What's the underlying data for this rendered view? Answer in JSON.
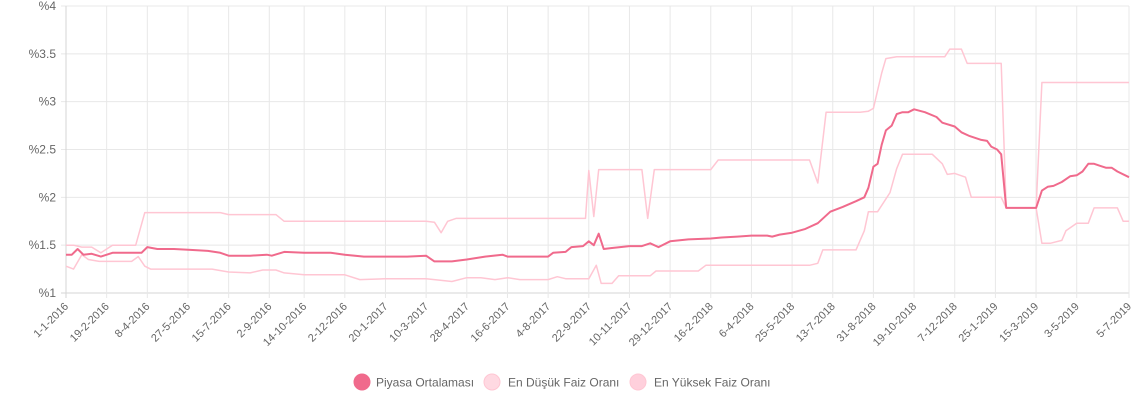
{
  "chart_data": {
    "type": "line",
    "title": "",
    "xlabel": "",
    "ylabel": "",
    "ylim": [
      1,
      4
    ],
    "y_ticks": [
      "%1",
      "%1.5",
      "%2",
      "%2.5",
      "%3",
      "%3.5",
      "%4"
    ],
    "y_tick_values": [
      1,
      1.5,
      2,
      2.5,
      3,
      3.5,
      4
    ],
    "x_range": [
      "2016-01-01",
      "2019-07-05"
    ],
    "x_tick_labels": [
      "1-1-2016",
      "19-2-2016",
      "8-4-2016",
      "27-5-2016",
      "15-7-2016",
      "2-9-2016",
      "14-10-2016",
      "2-12-2016",
      "20-1-2017",
      "10-3-2017",
      "28-4-2017",
      "16-6-2017",
      "4-8-2017",
      "22-9-2017",
      "10-11-2017",
      "29-12-2017",
      "16-2-2018",
      "6-4-2018",
      "25-5-2018",
      "13-7-2018",
      "31-8-2018",
      "19-10-2018",
      "7-12-2018",
      "25-1-2019",
      "15-3-2019",
      "3-5-2019",
      "5-7-2019"
    ],
    "x_tick_dates": [
      "2016-01-01",
      "2016-02-19",
      "2016-04-08",
      "2016-05-27",
      "2016-07-15",
      "2016-09-02",
      "2016-10-14",
      "2016-12-02",
      "2017-01-20",
      "2017-03-10",
      "2017-04-28",
      "2017-06-16",
      "2017-08-04",
      "2017-09-22",
      "2017-11-10",
      "2017-12-29",
      "2018-02-16",
      "2018-04-06",
      "2018-05-25",
      "2018-07-13",
      "2018-08-31",
      "2018-10-19",
      "2018-12-07",
      "2019-01-25",
      "2019-03-15",
      "2019-05-03",
      "2019-07-05"
    ],
    "grid": true,
    "legend_position": "bottom",
    "series": [
      {
        "name": "Piyasa Ortalaması",
        "color": "#f06a8c",
        "fill": "#f06a8c",
        "width": 2,
        "points": [
          [
            "2016-01-01",
            1.4
          ],
          [
            "2016-01-08",
            1.4
          ],
          [
            "2016-01-15",
            1.46
          ],
          [
            "2016-01-22",
            1.4
          ],
          [
            "2016-02-01",
            1.41
          ],
          [
            "2016-02-12",
            1.38
          ],
          [
            "2016-02-26",
            1.42
          ],
          [
            "2016-03-15",
            1.42
          ],
          [
            "2016-04-01",
            1.42
          ],
          [
            "2016-04-08",
            1.48
          ],
          [
            "2016-04-20",
            1.46
          ],
          [
            "2016-05-10",
            1.46
          ],
          [
            "2016-05-30",
            1.45
          ],
          [
            "2016-06-20",
            1.44
          ],
          [
            "2016-07-05",
            1.42
          ],
          [
            "2016-07-15",
            1.39
          ],
          [
            "2016-08-10",
            1.39
          ],
          [
            "2016-08-30",
            1.4
          ],
          [
            "2016-09-05",
            1.39
          ],
          [
            "2016-09-20",
            1.43
          ],
          [
            "2016-10-14",
            1.42
          ],
          [
            "2016-11-01",
            1.42
          ],
          [
            "2016-11-15",
            1.42
          ],
          [
            "2016-12-02",
            1.4
          ],
          [
            "2016-12-25",
            1.38
          ],
          [
            "2017-01-20",
            1.38
          ],
          [
            "2017-02-15",
            1.38
          ],
          [
            "2017-03-10",
            1.39
          ],
          [
            "2017-03-20",
            1.33
          ],
          [
            "2017-04-10",
            1.33
          ],
          [
            "2017-04-28",
            1.35
          ],
          [
            "2017-05-20",
            1.38
          ],
          [
            "2017-06-10",
            1.4
          ],
          [
            "2017-06-16",
            1.38
          ],
          [
            "2017-07-10",
            1.38
          ],
          [
            "2017-08-04",
            1.38
          ],
          [
            "2017-08-10",
            1.42
          ],
          [
            "2017-08-25",
            1.43
          ],
          [
            "2017-09-01",
            1.48
          ],
          [
            "2017-09-15",
            1.49
          ],
          [
            "2017-09-22",
            1.54
          ],
          [
            "2017-09-28",
            1.5
          ],
          [
            "2017-10-04",
            1.62
          ],
          [
            "2017-10-10",
            1.46
          ],
          [
            "2017-10-20",
            1.47
          ],
          [
            "2017-11-10",
            1.49
          ],
          [
            "2017-11-25",
            1.49
          ],
          [
            "2017-12-05",
            1.52
          ],
          [
            "2017-12-15",
            1.48
          ],
          [
            "2017-12-29",
            1.54
          ],
          [
            "2018-01-20",
            1.56
          ],
          [
            "2018-02-16",
            1.57
          ],
          [
            "2018-03-01",
            1.58
          ],
          [
            "2018-03-20",
            1.59
          ],
          [
            "2018-04-06",
            1.6
          ],
          [
            "2018-04-25",
            1.6
          ],
          [
            "2018-05-01",
            1.59
          ],
          [
            "2018-05-10",
            1.61
          ],
          [
            "2018-05-25",
            1.63
          ],
          [
            "2018-06-10",
            1.67
          ],
          [
            "2018-06-25",
            1.73
          ],
          [
            "2018-07-10",
            1.85
          ],
          [
            "2018-07-25",
            1.9
          ],
          [
            "2018-08-10",
            1.96
          ],
          [
            "2018-08-20",
            2.0
          ],
          [
            "2018-08-25",
            2.1
          ],
          [
            "2018-08-31",
            2.32
          ],
          [
            "2018-09-05",
            2.35
          ],
          [
            "2018-09-10",
            2.55
          ],
          [
            "2018-09-15",
            2.7
          ],
          [
            "2018-09-22",
            2.75
          ],
          [
            "2018-09-28",
            2.87
          ],
          [
            "2018-10-05",
            2.89
          ],
          [
            "2018-10-12",
            2.89
          ],
          [
            "2018-10-19",
            2.92
          ],
          [
            "2018-11-01",
            2.89
          ],
          [
            "2018-11-15",
            2.84
          ],
          [
            "2018-11-22",
            2.78
          ],
          [
            "2018-12-07",
            2.74
          ],
          [
            "2018-12-15",
            2.68
          ],
          [
            "2018-12-25",
            2.64
          ],
          [
            "2019-01-08",
            2.6
          ],
          [
            "2019-01-15",
            2.59
          ],
          [
            "2019-01-20",
            2.53
          ],
          [
            "2019-01-27",
            2.5
          ],
          [
            "2019-02-01",
            2.45
          ],
          [
            "2019-02-07",
            1.89
          ],
          [
            "2019-02-20",
            1.89
          ],
          [
            "2019-03-15",
            1.89
          ],
          [
            "2019-03-22",
            2.07
          ],
          [
            "2019-03-29",
            2.11
          ],
          [
            "2019-04-05",
            2.12
          ],
          [
            "2019-04-15",
            2.16
          ],
          [
            "2019-04-25",
            2.22
          ],
          [
            "2019-05-03",
            2.23
          ],
          [
            "2019-05-10",
            2.27
          ],
          [
            "2019-05-17",
            2.35
          ],
          [
            "2019-05-24",
            2.35
          ],
          [
            "2019-05-31",
            2.33
          ],
          [
            "2019-06-07",
            2.31
          ],
          [
            "2019-06-14",
            2.31
          ],
          [
            "2019-06-21",
            2.27
          ],
          [
            "2019-07-05",
            2.21
          ]
        ]
      },
      {
        "name": "En Düşük Faiz Oranı",
        "color": "#ffc6d3",
        "fill": "#ffd9e2",
        "width": 1.5,
        "points": [
          [
            "2016-01-01",
            1.28
          ],
          [
            "2016-01-10",
            1.25
          ],
          [
            "2016-01-20",
            1.4
          ],
          [
            "2016-01-28",
            1.35
          ],
          [
            "2016-02-10",
            1.33
          ],
          [
            "2016-03-01",
            1.33
          ],
          [
            "2016-03-20",
            1.33
          ],
          [
            "2016-03-28",
            1.38
          ],
          [
            "2016-04-05",
            1.28
          ],
          [
            "2016-04-12",
            1.25
          ],
          [
            "2016-05-15",
            1.25
          ],
          [
            "2016-06-25",
            1.25
          ],
          [
            "2016-07-15",
            1.22
          ],
          [
            "2016-08-10",
            1.21
          ],
          [
            "2016-08-25",
            1.24
          ],
          [
            "2016-09-10",
            1.24
          ],
          [
            "2016-09-20",
            1.21
          ],
          [
            "2016-10-14",
            1.19
          ],
          [
            "2016-12-02",
            1.19
          ],
          [
            "2016-12-20",
            1.14
          ],
          [
            "2017-01-20",
            1.15
          ],
          [
            "2017-03-10",
            1.15
          ],
          [
            "2017-03-20",
            1.14
          ],
          [
            "2017-04-10",
            1.12
          ],
          [
            "2017-04-28",
            1.16
          ],
          [
            "2017-05-15",
            1.16
          ],
          [
            "2017-06-01",
            1.14
          ],
          [
            "2017-06-16",
            1.16
          ],
          [
            "2017-07-01",
            1.14
          ],
          [
            "2017-08-04",
            1.14
          ],
          [
            "2017-08-15",
            1.17
          ],
          [
            "2017-08-25",
            1.15
          ],
          [
            "2017-09-22",
            1.15
          ],
          [
            "2017-10-01",
            1.29
          ],
          [
            "2017-10-07",
            1.1
          ],
          [
            "2017-10-20",
            1.1
          ],
          [
            "2017-10-28",
            1.18
          ],
          [
            "2017-11-15",
            1.18
          ],
          [
            "2017-12-05",
            1.18
          ],
          [
            "2017-12-12",
            1.23
          ],
          [
            "2018-01-10",
            1.23
          ],
          [
            "2018-02-01",
            1.23
          ],
          [
            "2018-02-10",
            1.29
          ],
          [
            "2018-03-10",
            1.29
          ],
          [
            "2018-05-01",
            1.29
          ],
          [
            "2018-06-15",
            1.29
          ],
          [
            "2018-06-25",
            1.31
          ],
          [
            "2018-07-01",
            1.45
          ],
          [
            "2018-07-20",
            1.45
          ],
          [
            "2018-08-05",
            1.45
          ],
          [
            "2018-08-10",
            1.45
          ],
          [
            "2018-08-20",
            1.65
          ],
          [
            "2018-08-25",
            1.85
          ],
          [
            "2018-09-05",
            1.85
          ],
          [
            "2018-09-20",
            2.05
          ],
          [
            "2018-09-28",
            2.3
          ],
          [
            "2018-10-05",
            2.45
          ],
          [
            "2018-10-20",
            2.45
          ],
          [
            "2018-11-10",
            2.45
          ],
          [
            "2018-11-22",
            2.35
          ],
          [
            "2018-11-28",
            2.24
          ],
          [
            "2018-12-07",
            2.25
          ],
          [
            "2018-12-20",
            2.21
          ],
          [
            "2018-12-27",
            2.0
          ],
          [
            "2019-01-20",
            2.0
          ],
          [
            "2019-02-01",
            2.0
          ],
          [
            "2019-02-07",
            1.89
          ],
          [
            "2019-03-15",
            1.89
          ],
          [
            "2019-03-22",
            1.52
          ],
          [
            "2019-04-01",
            1.52
          ],
          [
            "2019-04-15",
            1.55
          ],
          [
            "2019-04-20",
            1.65
          ],
          [
            "2019-05-03",
            1.73
          ],
          [
            "2019-05-17",
            1.73
          ],
          [
            "2019-05-24",
            1.89
          ],
          [
            "2019-06-21",
            1.89
          ],
          [
            "2019-06-28",
            1.75
          ],
          [
            "2019-07-05",
            1.75
          ]
        ]
      },
      {
        "name": "En Yüksek Faiz Oranı",
        "color": "#ffc6d3",
        "fill": "#ffd0dc",
        "width": 1.5,
        "points": [
          [
            "2016-01-01",
            1.5
          ],
          [
            "2016-01-10",
            1.5
          ],
          [
            "2016-01-20",
            1.48
          ],
          [
            "2016-02-01",
            1.48
          ],
          [
            "2016-02-12",
            1.42
          ],
          [
            "2016-02-26",
            1.5
          ],
          [
            "2016-03-25",
            1.5
          ],
          [
            "2016-04-05",
            1.84
          ],
          [
            "2016-05-01",
            1.84
          ],
          [
            "2016-06-01",
            1.84
          ],
          [
            "2016-07-05",
            1.84
          ],
          [
            "2016-07-15",
            1.82
          ],
          [
            "2016-08-10",
            1.82
          ],
          [
            "2016-09-10",
            1.82
          ],
          [
            "2016-09-20",
            1.75
          ],
          [
            "2016-10-14",
            1.75
          ],
          [
            "2016-11-15",
            1.75
          ],
          [
            "2016-12-02",
            1.75
          ],
          [
            "2017-01-20",
            1.75
          ],
          [
            "2017-03-10",
            1.75
          ],
          [
            "2017-03-20",
            1.74
          ],
          [
            "2017-03-28",
            1.63
          ],
          [
            "2017-04-05",
            1.75
          ],
          [
            "2017-04-15",
            1.78
          ],
          [
            "2017-05-20",
            1.78
          ],
          [
            "2017-06-16",
            1.78
          ],
          [
            "2017-08-04",
            1.78
          ],
          [
            "2017-09-10",
            1.78
          ],
          [
            "2017-09-18",
            1.78
          ],
          [
            "2017-09-22",
            2.28
          ],
          [
            "2017-09-28",
            1.8
          ],
          [
            "2017-10-04",
            2.29
          ],
          [
            "2017-10-20",
            2.29
          ],
          [
            "2017-11-15",
            2.29
          ],
          [
            "2017-11-25",
            2.29
          ],
          [
            "2017-12-02",
            1.78
          ],
          [
            "2017-12-10",
            2.29
          ],
          [
            "2018-01-20",
            2.29
          ],
          [
            "2018-02-16",
            2.29
          ],
          [
            "2018-02-25",
            2.39
          ],
          [
            "2018-04-06",
            2.39
          ],
          [
            "2018-05-25",
            2.39
          ],
          [
            "2018-06-15",
            2.39
          ],
          [
            "2018-06-25",
            2.15
          ],
          [
            "2018-07-05",
            2.89
          ],
          [
            "2018-07-20",
            2.89
          ],
          [
            "2018-08-15",
            2.89
          ],
          [
            "2018-08-25",
            2.9
          ],
          [
            "2018-08-31",
            2.93
          ],
          [
            "2018-09-10",
            3.3
          ],
          [
            "2018-09-15",
            3.45
          ],
          [
            "2018-09-28",
            3.47
          ],
          [
            "2018-10-19",
            3.47
          ],
          [
            "2018-11-15",
            3.47
          ],
          [
            "2018-11-25",
            3.47
          ],
          [
            "2018-12-01",
            3.55
          ],
          [
            "2018-12-15",
            3.55
          ],
          [
            "2018-12-22",
            3.4
          ],
          [
            "2019-01-25",
            3.4
          ],
          [
            "2019-02-01",
            3.4
          ],
          [
            "2019-02-07",
            1.89
          ],
          [
            "2019-03-15",
            1.89
          ],
          [
            "2019-03-22",
            3.2
          ],
          [
            "2019-05-03",
            3.2
          ],
          [
            "2019-06-15",
            3.2
          ],
          [
            "2019-07-05",
            3.2
          ]
        ]
      }
    ]
  },
  "legend": {
    "items": [
      {
        "label": "Piyasa Ortalaması",
        "swatch": "#f06a8c"
      },
      {
        "label": "En Düşük Faiz Oranı",
        "swatch": "#ffd9e2"
      },
      {
        "label": "En Yüksek Faiz Oranı",
        "swatch": "#ffd0dc"
      }
    ]
  }
}
